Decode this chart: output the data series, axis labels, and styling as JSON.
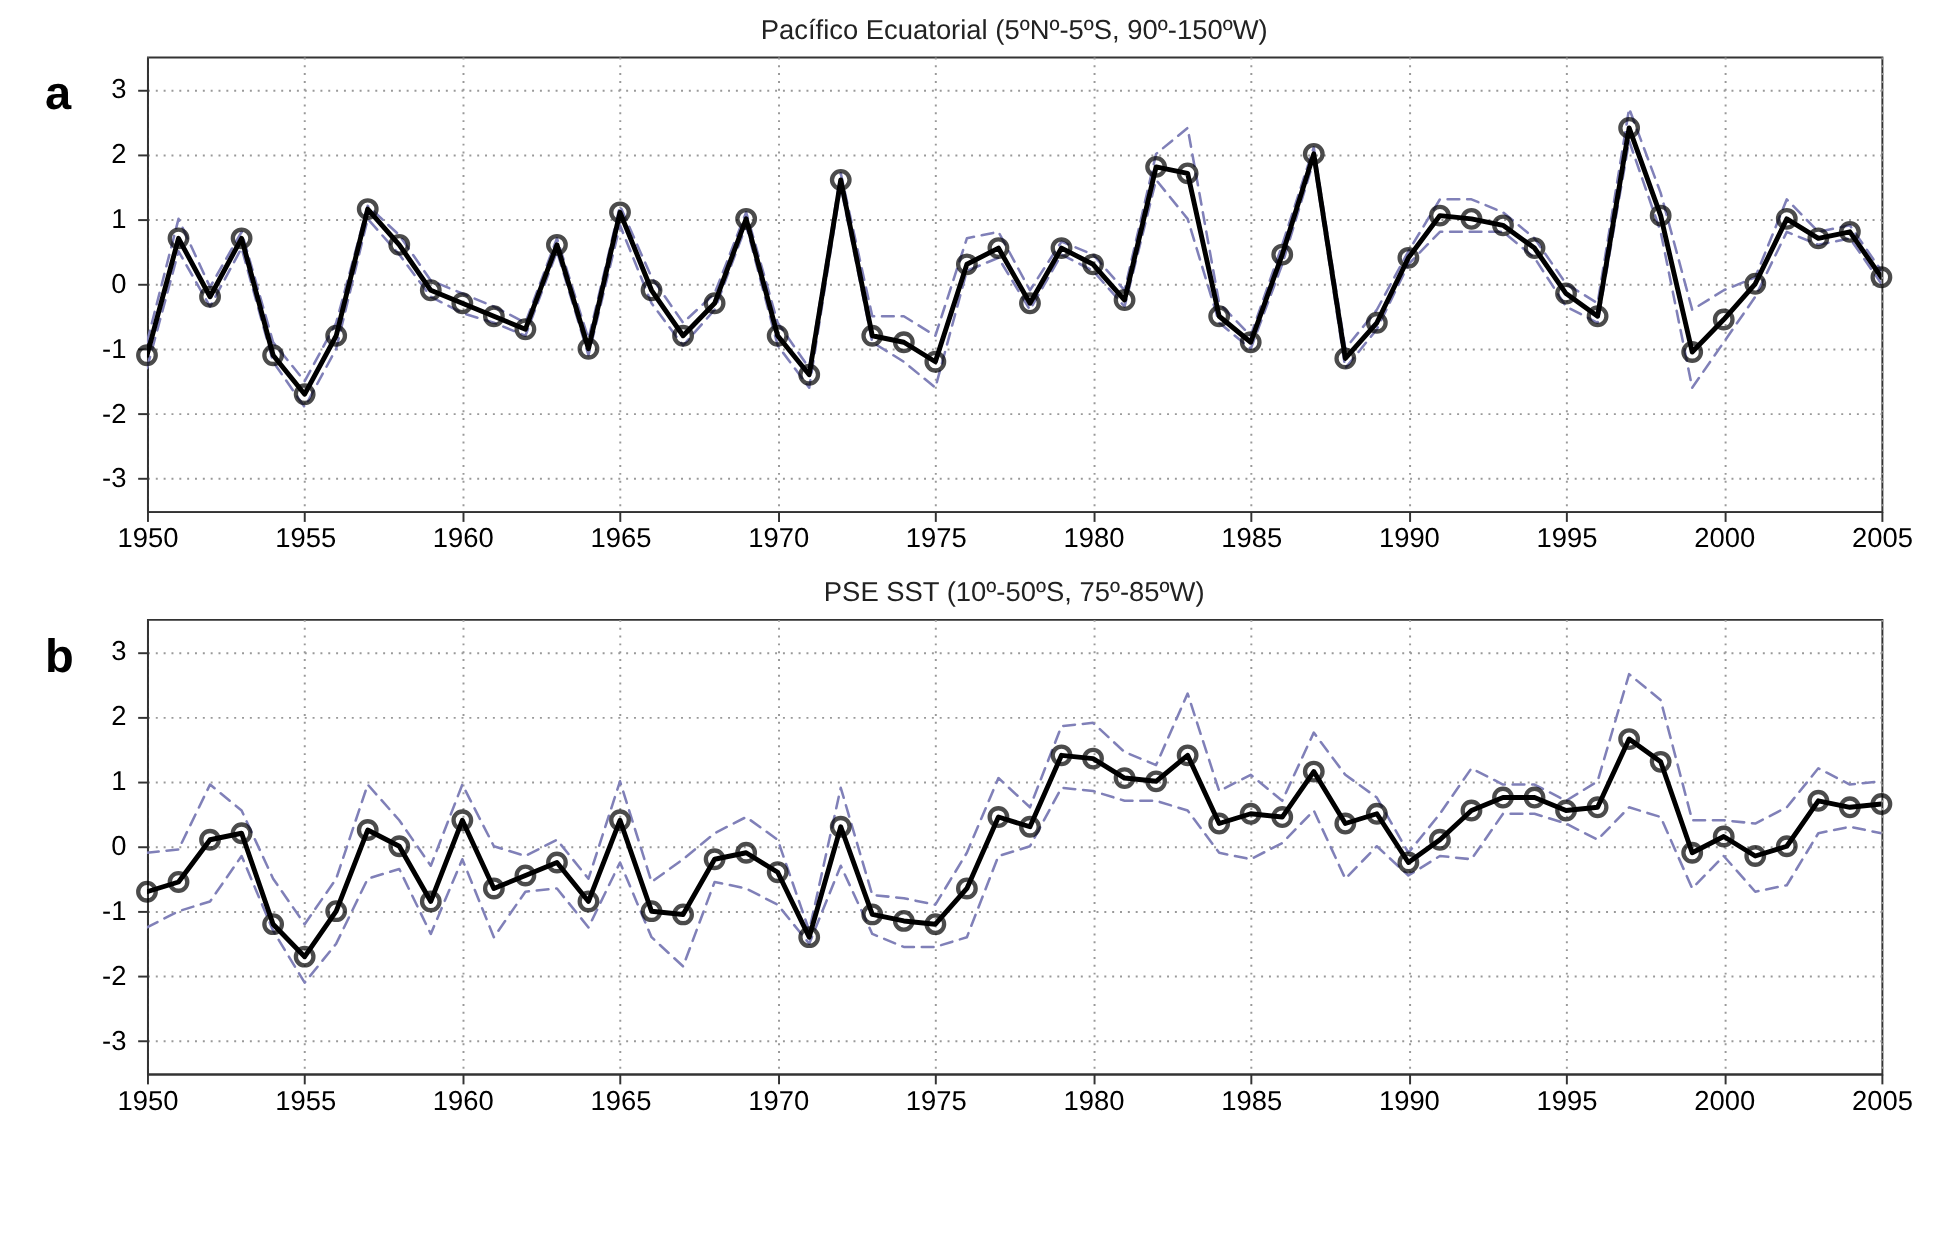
{
  "chart_data": [
    {
      "type": "line",
      "title": "Pacífico Ecuatorial (5ºNº-5ºS, 90º-150ºW)",
      "annotations": [
        "a"
      ],
      "x": [
        1950,
        1951,
        1952,
        1953,
        1954,
        1955,
        1956,
        1957,
        1958,
        1959,
        1960,
        1961,
        1962,
        1963,
        1964,
        1965,
        1966,
        1967,
        1968,
        1969,
        1970,
        1971,
        1972,
        1973,
        1974,
        1975,
        1976,
        1977,
        1978,
        1979,
        1980,
        1981,
        1982,
        1983,
        1984,
        1985,
        1986,
        1987,
        1988,
        1989,
        1990,
        1991,
        1992,
        1993,
        1994,
        1995,
        1996,
        1997,
        1998,
        1999,
        2000,
        2001,
        2002,
        2003,
        2004,
        2005
      ],
      "xlim": [
        1950,
        2005
      ],
      "xticks": [
        1950,
        1955,
        1960,
        1965,
        1970,
        1975,
        1980,
        1985,
        1990,
        1995,
        2000,
        2005
      ],
      "ylim": [
        -3.5,
        3.5
      ],
      "yticks": [
        -3,
        -2,
        -1,
        0,
        1,
        2,
        3
      ],
      "grid": true,
      "series": [
        {
          "color": "#8080b8",
          "line_style": "dashed",
          "marker": "none",
          "values": [
            -0.9,
            1.0,
            -0.05,
            0.8,
            -0.9,
            -1.5,
            -0.6,
            1.2,
            0.75,
            0.05,
            -0.15,
            -0.35,
            -0.6,
            0.7,
            -0.85,
            1.2,
            0.1,
            -0.6,
            -0.15,
            1.1,
            -0.6,
            -1.3,
            1.7,
            -0.5,
            -0.5,
            -0.8,
            0.7,
            0.8,
            -0.1,
            0.65,
            0.45,
            -0.1,
            2.0,
            2.4,
            -0.3,
            -0.8,
            0.6,
            2.1,
            -1.0,
            -0.4,
            0.5,
            1.3,
            1.3,
            1.1,
            0.7,
            0.0,
            -0.3,
            2.7,
            1.4,
            -0.4,
            -0.1,
            0.1,
            1.3,
            0.8,
            0.9,
            0.2
          ]
        },
        {
          "color": "#8080b8",
          "line_style": "dashed",
          "marker": "none",
          "values": [
            -1.3,
            0.5,
            -0.35,
            0.55,
            -1.2,
            -1.9,
            -1.0,
            1.0,
            0.45,
            -0.2,
            -0.45,
            -0.6,
            -0.8,
            0.5,
            -1.1,
            0.9,
            -0.3,
            -0.95,
            -0.4,
            0.9,
            -0.95,
            -1.6,
            1.5,
            -0.9,
            -1.2,
            -1.6,
            0.2,
            0.4,
            -0.4,
            0.45,
            0.2,
            -0.35,
            1.6,
            1.0,
            -0.6,
            -1.0,
            0.3,
            1.9,
            -1.3,
            -0.7,
            0.3,
            0.8,
            0.8,
            0.8,
            0.4,
            -0.35,
            -0.6,
            2.2,
            0.8,
            -1.6,
            -0.9,
            -0.2,
            0.8,
            0.6,
            0.7,
            0.0
          ]
        },
        {
          "color": "#000000",
          "line_style": "solid",
          "marker": "circle",
          "values": [
            -1.1,
            0.7,
            -0.2,
            0.7,
            -1.1,
            -1.7,
            -0.8,
            1.15,
            0.6,
            -0.1,
            -0.3,
            -0.5,
            -0.7,
            0.6,
            -1.0,
            1.1,
            -0.1,
            -0.8,
            -0.3,
            1.0,
            -0.8,
            -1.4,
            1.6,
            -0.8,
            -0.9,
            -1.2,
            0.3,
            0.55,
            -0.3,
            0.55,
            0.3,
            -0.25,
            1.8,
            1.7,
            -0.5,
            -0.9,
            0.45,
            2.0,
            -1.15,
            -0.6,
            0.4,
            1.05,
            1.0,
            0.9,
            0.55,
            -0.15,
            -0.5,
            2.4,
            1.05,
            -1.05,
            -0.55,
            0.0,
            1.0,
            0.7,
            0.8,
            0.1
          ]
        }
      ]
    },
    {
      "type": "line",
      "title": "PSE SST (10º-50ºS, 75º-85ºW)",
      "annotations": [
        "b"
      ],
      "x": [
        1950,
        1951,
        1952,
        1953,
        1954,
        1955,
        1956,
        1957,
        1958,
        1959,
        1960,
        1961,
        1962,
        1963,
        1964,
        1965,
        1966,
        1967,
        1968,
        1969,
        1970,
        1971,
        1972,
        1973,
        1974,
        1975,
        1976,
        1977,
        1978,
        1979,
        1980,
        1981,
        1982,
        1983,
        1984,
        1985,
        1986,
        1987,
        1988,
        1989,
        1990,
        1991,
        1992,
        1993,
        1994,
        1995,
        1996,
        1997,
        1998,
        1999,
        2000,
        2001,
        2002,
        2003,
        2004,
        2005
      ],
      "xlim": [
        1950,
        2005
      ],
      "xticks": [
        1950,
        1955,
        1960,
        1965,
        1970,
        1975,
        1980,
        1985,
        1990,
        1995,
        2000,
        2005
      ],
      "ylim": [
        -3.5,
        3.5
      ],
      "yticks": [
        -3,
        -2,
        -1,
        0,
        1,
        2,
        3
      ],
      "grid": true,
      "series": [
        {
          "color": "#8080b8",
          "line_style": "dashed",
          "marker": "none",
          "values": [
            -0.1,
            -0.05,
            0.95,
            0.55,
            -0.5,
            -1.2,
            -0.5,
            0.95,
            0.4,
            -0.3,
            0.95,
            0.0,
            -0.15,
            0.1,
            -0.5,
            1.0,
            -0.55,
            -0.2,
            0.2,
            0.45,
            0.1,
            -1.3,
            0.9,
            -0.75,
            -0.8,
            -0.9,
            -0.1,
            1.05,
            0.6,
            1.85,
            1.9,
            1.45,
            1.25,
            2.35,
            0.85,
            1.1,
            0.7,
            1.75,
            1.1,
            0.75,
            -0.1,
            0.5,
            1.2,
            0.95,
            0.95,
            0.7,
            1.0,
            2.65,
            2.25,
            0.4,
            0.4,
            0.35,
            0.6,
            1.2,
            0.95,
            1.0
          ]
        },
        {
          "color": "#8080b8",
          "line_style": "dashed",
          "marker": "none",
          "values": [
            -1.25,
            -1.0,
            -0.85,
            -0.15,
            -1.3,
            -2.1,
            -1.5,
            -0.5,
            -0.35,
            -1.35,
            -0.2,
            -1.4,
            -0.7,
            -0.65,
            -1.25,
            -0.25,
            -1.4,
            -1.85,
            -0.55,
            -0.65,
            -0.9,
            -1.5,
            -0.3,
            -1.35,
            -1.55,
            -1.55,
            -1.4,
            -0.15,
            0.0,
            0.9,
            0.85,
            0.7,
            0.7,
            0.55,
            -0.1,
            -0.2,
            0.05,
            0.55,
            -0.5,
            0.0,
            -0.45,
            -0.15,
            -0.2,
            0.5,
            0.5,
            0.35,
            0.1,
            0.6,
            0.45,
            -0.65,
            -0.15,
            -0.7,
            -0.6,
            0.2,
            0.3,
            0.2
          ]
        },
        {
          "color": "#000000",
          "line_style": "solid",
          "marker": "circle",
          "values": [
            -0.7,
            -0.55,
            0.1,
            0.2,
            -1.2,
            -1.7,
            -1.0,
            0.25,
            0.0,
            -0.85,
            0.4,
            -0.65,
            -0.45,
            -0.25,
            -0.85,
            0.4,
            -1.0,
            -1.05,
            -0.2,
            -0.1,
            -0.4,
            -1.4,
            0.3,
            -1.05,
            -1.15,
            -1.2,
            -0.65,
            0.45,
            0.3,
            1.4,
            1.35,
            1.05,
            1.0,
            1.4,
            0.35,
            0.5,
            0.45,
            1.15,
            0.35,
            0.5,
            -0.25,
            0.1,
            0.55,
            0.75,
            0.75,
            0.55,
            0.6,
            1.65,
            1.3,
            -0.1,
            0.15,
            -0.15,
            0.0,
            0.7,
            0.6,
            0.65
          ]
        }
      ]
    }
  ]
}
